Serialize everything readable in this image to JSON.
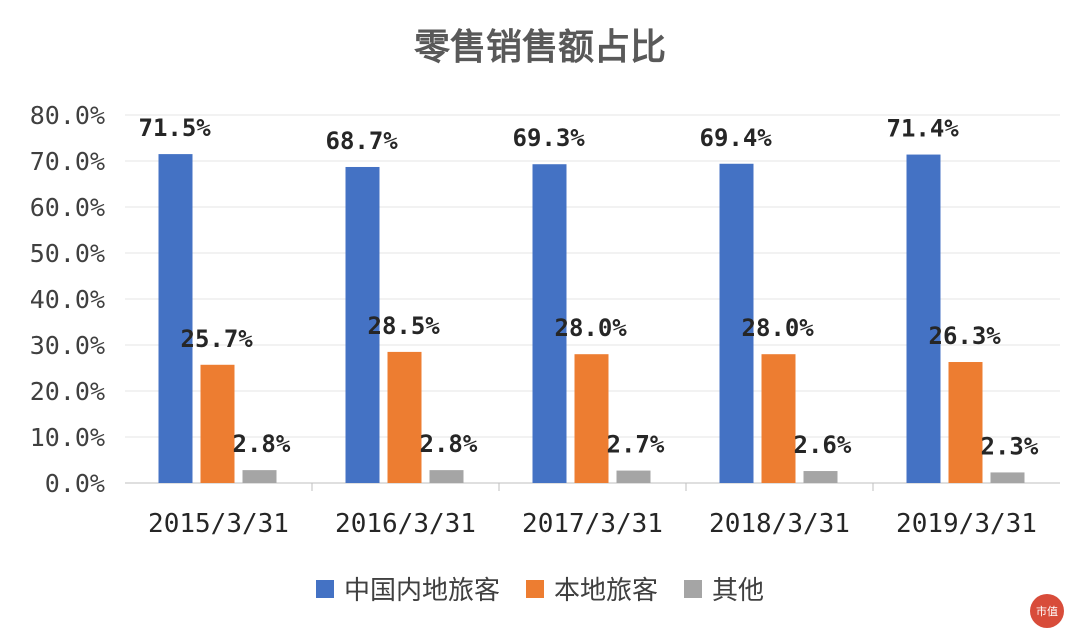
{
  "chart_data": {
    "type": "bar",
    "title": "零售销售额占比",
    "categories": [
      "2015/3/31",
      "2016/3/31",
      "2017/3/31",
      "2018/3/31",
      "2019/3/31"
    ],
    "series": [
      {
        "name": "中国内地旅客",
        "color": "#4472C4",
        "values": [
          71.5,
          68.7,
          69.3,
          69.4,
          71.4
        ]
      },
      {
        "name": "本地旅客",
        "color": "#ED7D31",
        "values": [
          25.7,
          28.5,
          28.0,
          28.0,
          26.3
        ]
      },
      {
        "name": "其他",
        "color": "#A5A5A5",
        "values": [
          2.8,
          2.8,
          2.7,
          2.6,
          2.3
        ]
      }
    ],
    "data_labels": [
      [
        "71.5%",
        "68.7%",
        "69.3%",
        "69.4%",
        "71.4%"
      ],
      [
        "25.7%",
        "28.5%",
        "28.0%",
        "28.0%",
        "26.3%"
      ],
      [
        "2.8%",
        "2.8%",
        "2.7%",
        "2.6%",
        "2.3%"
      ]
    ],
    "yticks": [
      "0.0%",
      "10.0%",
      "20.0%",
      "30.0%",
      "40.0%",
      "50.0%",
      "60.0%",
      "70.0%",
      "80.0%"
    ],
    "ylim": [
      0,
      80
    ],
    "grid": true,
    "legend_position": "bottom"
  },
  "watermark_text": "市值"
}
